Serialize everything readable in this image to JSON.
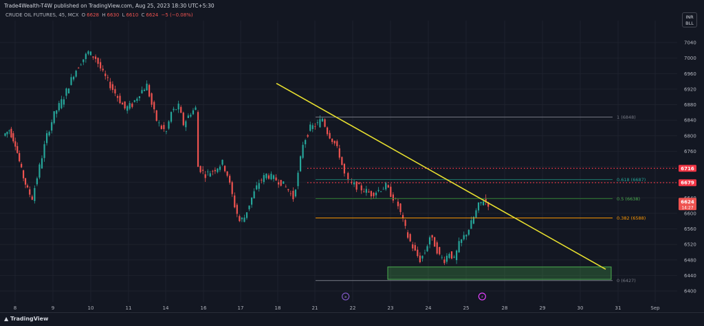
{
  "header": {
    "publisher": "Trade4Wealth-T4W published on TradingView.com, Aug 25, 2023 18:30 UTC+5:30"
  },
  "symbol_bar": {
    "name": "CRUDE OIL FUTURES, 45, MCX",
    "o_label": "O",
    "o_value": "6628",
    "h_label": "H",
    "h_value": "6630",
    "l_label": "L",
    "l_value": "6610",
    "c_label": "C",
    "c_value": "6624",
    "change": "−5 (−0.08%)"
  },
  "currency_box": {
    "line1": "INR",
    "line2": "BLL"
  },
  "footer": {
    "brand": "TradingView"
  },
  "colors": {
    "background": "#131722",
    "up": "#26a69a",
    "down": "#ef5350",
    "trendline": "#e8e02f",
    "dotted_level": "#f23645",
    "fib_1": "#787b86",
    "fib_0618": "#1e7b6f",
    "fib_05": "#2e7d32",
    "fib_0382": "#ff9800",
    "fib_0": "#787b86",
    "zone": "#4caf50"
  },
  "chart_data": {
    "type": "candlestick",
    "y_axis": {
      "ticks": [
        6400,
        6440,
        6480,
        6520,
        6560,
        6600,
        6640,
        6680,
        6720,
        6760,
        6800,
        6840,
        6880,
        6920,
        6960,
        7000,
        7040
      ],
      "range": [
        6390,
        7060
      ]
    },
    "x_axis": {
      "ticks": [
        "8",
        "9",
        "10",
        "11",
        "14",
        "16",
        "17",
        "18",
        "21",
        "22",
        "23",
        "24",
        "25",
        "28",
        "29",
        "30",
        "31",
        "Sep"
      ]
    },
    "last_price": {
      "value": "6624",
      "countdown": "14:27"
    },
    "price_levels": [
      {
        "value": 6716,
        "label": "6716",
        "style": "dotted"
      },
      {
        "value": 6679,
        "label": "6679",
        "style": "dotted"
      }
    ],
    "fib_levels": [
      {
        "ratio": "1",
        "price": 6848,
        "label": "1 (6848)"
      },
      {
        "ratio": "0.618",
        "price": 6687,
        "label": "0.618 (6687)"
      },
      {
        "ratio": "0.5",
        "price": 6638,
        "label": "0.5 (6638)"
      },
      {
        "ratio": "0.382",
        "price": 6588,
        "label": "0.382 (6588)"
      },
      {
        "ratio": "0",
        "price": 6427,
        "label": "0 (6427)"
      }
    ],
    "trendline": {
      "from": {
        "day": "18",
        "price": 6935
      },
      "to": {
        "day": "31",
        "price": 6456
      }
    },
    "demand_zone": {
      "from_day": "23",
      "to_day": "31",
      "low": 6430,
      "high": 6462
    },
    "path_points": [
      [
        0,
        6800
      ],
      [
        0.25,
        6815
      ],
      [
        0.5,
        6780
      ],
      [
        0.75,
        6710
      ],
      [
        1,
        6660
      ],
      [
        1.2,
        6640
      ],
      [
        1.5,
        6720
      ],
      [
        1.8,
        6800
      ],
      [
        2.1,
        6855
      ],
      [
        2.5,
        6900
      ],
      [
        2.9,
        6960
      ],
      [
        3.2,
        6990
      ],
      [
        3.5,
        7015
      ],
      [
        3.8,
        7000
      ],
      [
        4.1,
        6960
      ],
      [
        4.4,
        6930
      ],
      [
        4.7,
        6900
      ],
      [
        5.0,
        6870
      ],
      [
        5.3,
        6880
      ],
      [
        5.6,
        6910
      ],
      [
        5.9,
        6930
      ],
      [
        6.1,
        6880
      ],
      [
        6.3,
        6840
      ],
      [
        6.5,
        6820
      ],
      [
        6.7,
        6810
      ],
      [
        6.9,
        6860
      ],
      [
        7.2,
        6875
      ],
      [
        7.4,
        6830
      ],
      [
        7.7,
        6860
      ],
      [
        7.9,
        6870
      ],
      [
        8.0,
        6720
      ],
      [
        8.3,
        6700
      ],
      [
        8.6,
        6710
      ],
      [
        9.0,
        6730
      ],
      [
        9.2,
        6700
      ],
      [
        9.5,
        6620
      ],
      [
        9.7,
        6580
      ],
      [
        9.9,
        6590
      ],
      [
        10.2,
        6640
      ],
      [
        10.5,
        6680
      ],
      [
        10.8,
        6700
      ],
      [
        11.1,
        6690
      ],
      [
        11.4,
        6680
      ],
      [
        11.7,
        6660
      ],
      [
        11.9,
        6640
      ],
      [
        12.1,
        6700
      ],
      [
        12.3,
        6780
      ],
      [
        12.6,
        6820
      ],
      [
        12.9,
        6830
      ],
      [
        13.1,
        6845
      ],
      [
        13.3,
        6810
      ],
      [
        13.6,
        6780
      ],
      [
        13.8,
        6750
      ],
      [
        14.0,
        6700
      ],
      [
        14.2,
        6680
      ],
      [
        14.5,
        6670
      ],
      [
        14.8,
        6660
      ],
      [
        15.1,
        6650
      ],
      [
        15.4,
        6660
      ],
      [
        15.7,
        6670
      ],
      [
        15.9,
        6650
      ],
      [
        16.2,
        6620
      ],
      [
        16.4,
        6580
      ],
      [
        16.6,
        6540
      ],
      [
        16.9,
        6500
      ],
      [
        17.1,
        6480
      ],
      [
        17.3,
        6500
      ],
      [
        17.5,
        6540
      ],
      [
        17.7,
        6520
      ],
      [
        17.9,
        6490
      ],
      [
        18.1,
        6480
      ],
      [
        18.3,
        6500
      ],
      [
        18.5,
        6480
      ],
      [
        18.7,
        6520
      ],
      [
        18.9,
        6540
      ],
      [
        19.1,
        6560
      ],
      [
        19.3,
        6590
      ],
      [
        19.5,
        6620
      ],
      [
        19.7,
        6635
      ],
      [
        19.9,
        6625
      ]
    ],
    "event_markers": [
      {
        "day_index": 14.0,
        "kind": "forward-icon"
      },
      {
        "day_index": 19.6,
        "kind": "flash-icon"
      }
    ]
  }
}
